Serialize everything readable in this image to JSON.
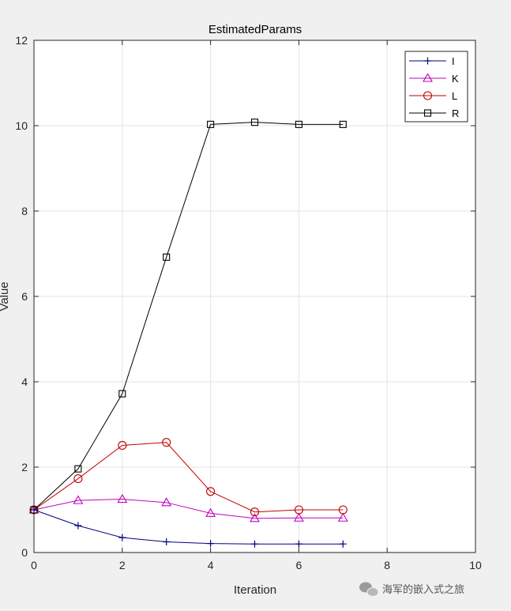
{
  "chart_data": {
    "type": "line",
    "title": "EstimatedParams",
    "xlabel": "Iteration",
    "ylabel": "Value",
    "xlim": [
      0,
      10
    ],
    "ylim": [
      0,
      12
    ],
    "xticks": [
      0,
      2,
      4,
      6,
      8,
      10
    ],
    "yticks": [
      0,
      2,
      4,
      6,
      8,
      10,
      12
    ],
    "grid": true,
    "legend_position": "top-right",
    "x": [
      0,
      1,
      2,
      3,
      4,
      5,
      6,
      7
    ],
    "series": [
      {
        "name": "I",
        "color": "#00007f",
        "marker": "plus",
        "values": [
          1.0,
          0.63,
          0.35,
          0.25,
          0.21,
          0.2,
          0.2,
          0.2
        ]
      },
      {
        "name": "K",
        "color": "#bf00bf",
        "marker": "triangle",
        "values": [
          1.0,
          1.22,
          1.25,
          1.17,
          0.92,
          0.8,
          0.81,
          0.81
        ]
      },
      {
        "name": "L",
        "color": "#c00000",
        "marker": "circle",
        "values": [
          1.0,
          1.73,
          2.51,
          2.58,
          1.43,
          0.95,
          1.0,
          1.0
        ]
      },
      {
        "name": "R",
        "color": "#000000",
        "marker": "square",
        "values": [
          1.0,
          1.96,
          3.72,
          6.92,
          10.03,
          10.08,
          10.03,
          10.03
        ]
      }
    ]
  },
  "watermark": {
    "text": "海军的嵌入式之旅",
    "icon": "wechat-icon"
  }
}
